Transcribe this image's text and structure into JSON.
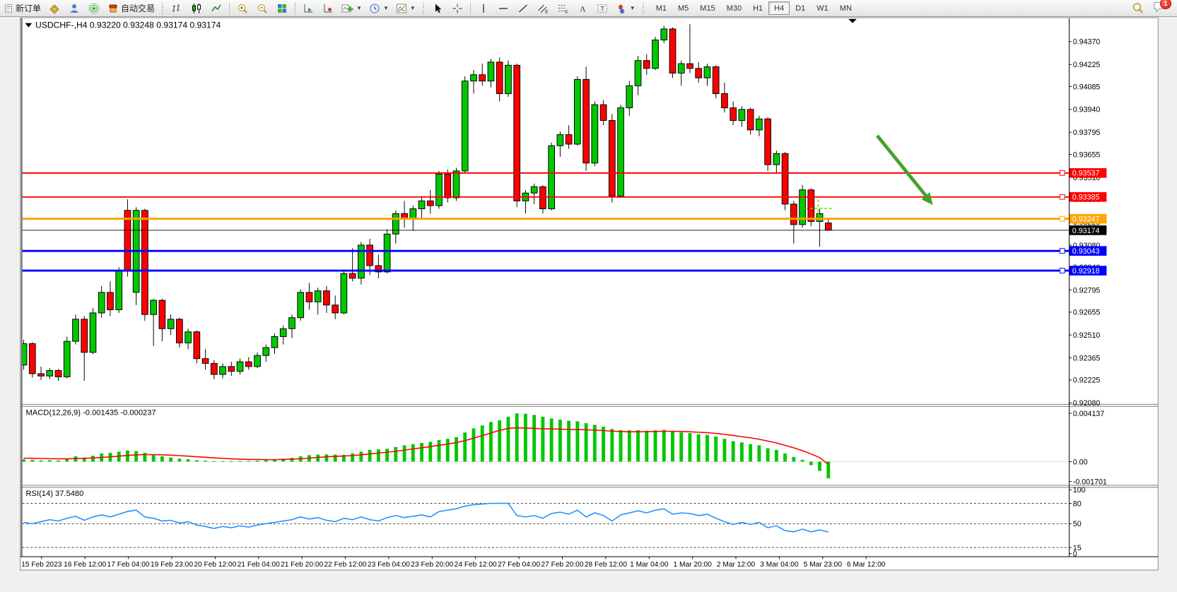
{
  "toolbar": {
    "new_order_label": "新订单",
    "autotrade_label": "自动交易",
    "timeframes": [
      "M1",
      "M5",
      "M15",
      "M30",
      "H1",
      "H4",
      "D1",
      "W1",
      "MN"
    ],
    "active_timeframe": "H4",
    "notification_count": "1",
    "icon_names": [
      "new-order",
      "quotes",
      "market-watch",
      "signal",
      "autotrading",
      "bar-chart",
      "candlestick-chart",
      "line-chart",
      "zoom-in",
      "zoom-out",
      "tile-windows",
      "auto-arrange",
      "chart-shift",
      "new-chart",
      "period-dropdown",
      "templates",
      "cursor",
      "crosshair",
      "vertical-line",
      "horizontal-line",
      "trendline",
      "equidistant-channel",
      "fibonacci",
      "text",
      "text-label",
      "arrow-shapes",
      "search",
      "notifications"
    ]
  },
  "chart_title": {
    "symbol": "USDCHF-,H4",
    "open": "0.93220",
    "high": "0.93248",
    "low": "0.93174",
    "close": "0.93174"
  },
  "time_axis": {
    "labels": [
      "15 Feb 2023",
      "16 Feb 12:00",
      "17 Feb 04:00",
      "19 Feb 23:00",
      "20 Feb 12:00",
      "21 Feb 04:00",
      "21 Feb 20:00",
      "22 Feb 12:00",
      "23 Feb 04:00",
      "23 Feb 20:00",
      "24 Feb 12:00",
      "27 Feb 04:00",
      "27 Feb 20:00",
      "28 Feb 12:00",
      "1 Mar 04:00",
      "1 Mar 20:00",
      "2 Mar 12:00",
      "3 Mar 04:00",
      "5 Mar 23:00",
      "6 Mar 12:00"
    ]
  },
  "colors": {
    "bull": "#00c800",
    "bear": "#ff0000",
    "level_red": "#ff0000",
    "level_orange": "#ffa500",
    "level_blue": "#0000ff",
    "current_line": "#000000",
    "arrow": "#44a22c",
    "rsi_line": "#1e90ff",
    "macd_signal": "#ff0000",
    "macd_hist": "#00c800",
    "marker": "#7ccf00"
  },
  "chart_data": [
    {
      "type": "candlestick",
      "title": "USDCHF H4",
      "ylim": [
        0.9208,
        0.945
      ],
      "y_ticks": [
        "0.94370",
        "0.94225",
        "0.94085",
        "0.93940",
        "0.93795",
        "0.93655",
        "0.93510",
        "0.93370",
        "0.93225",
        "0.93080",
        "0.92940",
        "0.92795",
        "0.92655",
        "0.92510",
        "0.92365",
        "0.92225",
        "0.92080"
      ],
      "levels": [
        {
          "price": 0.93537,
          "label": "0.93537",
          "color": "#ff0000",
          "width": 2,
          "handle": true
        },
        {
          "price": 0.93385,
          "label": "0.93385",
          "color": "#ff0000",
          "width": 2,
          "handle": true
        },
        {
          "price": 0.93247,
          "label": "0.93247",
          "color": "#ffa500",
          "width": 3,
          "handle": true
        },
        {
          "price": 0.93043,
          "label": "0.93043",
          "color": "#0000ff",
          "width": 3,
          "handle": true
        },
        {
          "price": 0.92918,
          "label": "0.92918",
          "color": "#0000ff",
          "width": 3,
          "handle": true
        }
      ],
      "current_price": {
        "value": 0.93174,
        "label": "0.93174"
      },
      "annotation": {
        "type": "arrow-down-right",
        "color": "#44a22c"
      },
      "marker": {
        "type": "dashed-cross",
        "color": "#7ccf00"
      },
      "ohlc": [
        [
          0.9232,
          0.9248,
          0.9229,
          0.92455
        ],
        [
          0.92455,
          0.92465,
          0.9224,
          0.92265
        ],
        [
          0.92265,
          0.9231,
          0.92225,
          0.9225
        ],
        [
          0.9225,
          0.923,
          0.9223,
          0.92285
        ],
        [
          0.92285,
          0.92295,
          0.9222,
          0.92245
        ],
        [
          0.92245,
          0.925,
          0.92235,
          0.9247
        ],
        [
          0.9247,
          0.9264,
          0.9245,
          0.9261
        ],
        [
          0.9261,
          0.9263,
          0.9222,
          0.924
        ],
        [
          0.924,
          0.9268,
          0.9239,
          0.9265
        ],
        [
          0.9265,
          0.9282,
          0.9262,
          0.9278
        ],
        [
          0.9278,
          0.9285,
          0.9263,
          0.9267
        ],
        [
          0.9267,
          0.9294,
          0.9265,
          0.9292
        ],
        [
          0.933,
          0.9337,
          0.9288,
          0.9292
        ],
        [
          0.9278,
          0.9332,
          0.927,
          0.933
        ],
        [
          0.933,
          0.9331,
          0.926,
          0.9264
        ],
        [
          0.9264,
          0.9274,
          0.9244,
          0.9273
        ],
        [
          0.9273,
          0.9274,
          0.9247,
          0.9255
        ],
        [
          0.9255,
          0.9264,
          0.9251,
          0.9261
        ],
        [
          0.9261,
          0.9262,
          0.9243,
          0.9246
        ],
        [
          0.9246,
          0.9255,
          0.9242,
          0.9253
        ],
        [
          0.9253,
          0.9254,
          0.9233,
          0.9236
        ],
        [
          0.9236,
          0.9242,
          0.9229,
          0.9233
        ],
        [
          0.9233,
          0.9235,
          0.9223,
          0.9226
        ],
        [
          0.9226,
          0.9233,
          0.92235,
          0.9231
        ],
        [
          0.9231,
          0.9234,
          0.9225,
          0.9228
        ],
        [
          0.9228,
          0.9236,
          0.9226,
          0.9234
        ],
        [
          0.9234,
          0.9237,
          0.9229,
          0.9231
        ],
        [
          0.9231,
          0.924,
          0.923,
          0.9238
        ],
        [
          0.9238,
          0.9245,
          0.9234,
          0.9243
        ],
        [
          0.9243,
          0.9252,
          0.9239,
          0.925
        ],
        [
          0.925,
          0.9257,
          0.9245,
          0.9255
        ],
        [
          0.9255,
          0.9264,
          0.9249,
          0.9262
        ],
        [
          0.9262,
          0.928,
          0.926,
          0.9278
        ],
        [
          0.9278,
          0.9284,
          0.9267,
          0.9272
        ],
        [
          0.9272,
          0.9281,
          0.9264,
          0.9279
        ],
        [
          0.9279,
          0.9282,
          0.9265,
          0.927
        ],
        [
          0.927,
          0.9276,
          0.9261,
          0.9265
        ],
        [
          0.9265,
          0.9292,
          0.9264,
          0.929
        ],
        [
          0.929,
          0.9306,
          0.9285,
          0.9287
        ],
        [
          0.9287,
          0.931,
          0.9283,
          0.9308
        ],
        [
          0.9308,
          0.9312,
          0.9289,
          0.9295
        ],
        [
          0.9295,
          0.9302,
          0.9287,
          0.9291
        ],
        [
          0.9291,
          0.9318,
          0.929,
          0.9315
        ],
        [
          0.9315,
          0.933,
          0.9309,
          0.9328
        ],
        [
          0.9328,
          0.9336,
          0.9319,
          0.9325
        ],
        [
          0.9325,
          0.9333,
          0.9317,
          0.9331
        ],
        [
          0.9331,
          0.9339,
          0.9324,
          0.9336
        ],
        [
          0.9336,
          0.9343,
          0.9328,
          0.9333
        ],
        [
          0.9333,
          0.9355,
          0.9331,
          0.9353
        ],
        [
          0.9353,
          0.9356,
          0.9335,
          0.9338
        ],
        [
          0.9338,
          0.9357,
          0.9336,
          0.9355
        ],
        [
          0.9355,
          0.9415,
          0.9354,
          0.9412
        ],
        [
          0.9412,
          0.9419,
          0.9404,
          0.9416
        ],
        [
          0.9416,
          0.9423,
          0.9409,
          0.9412
        ],
        [
          0.9412,
          0.9426,
          0.9408,
          0.9424
        ],
        [
          0.9424,
          0.9427,
          0.9399,
          0.9404
        ],
        [
          0.9404,
          0.9425,
          0.9402,
          0.9422
        ],
        [
          0.9422,
          0.9423,
          0.9332,
          0.9336
        ],
        [
          0.9336,
          0.9343,
          0.9328,
          0.9341
        ],
        [
          0.9341,
          0.9347,
          0.9334,
          0.9345
        ],
        [
          0.9345,
          0.9346,
          0.9328,
          0.9331
        ],
        [
          0.9331,
          0.9373,
          0.933,
          0.9371
        ],
        [
          0.9371,
          0.938,
          0.9364,
          0.9378
        ],
        [
          0.9378,
          0.9384,
          0.9369,
          0.9372
        ],
        [
          0.9372,
          0.9415,
          0.9371,
          0.9413
        ],
        [
          0.9413,
          0.9421,
          0.9355,
          0.936
        ],
        [
          0.936,
          0.9399,
          0.9358,
          0.9397
        ],
        [
          0.9397,
          0.94,
          0.9384,
          0.9387
        ],
        [
          0.9387,
          0.9391,
          0.9335,
          0.9339
        ],
        [
          0.9339,
          0.9397,
          0.9338,
          0.9395
        ],
        [
          0.9395,
          0.9412,
          0.939,
          0.9409
        ],
        [
          0.9409,
          0.9428,
          0.9403,
          0.9425
        ],
        [
          0.9425,
          0.9429,
          0.9416,
          0.942
        ],
        [
          0.942,
          0.944,
          0.9419,
          0.9438
        ],
        [
          0.9438,
          0.9447,
          0.9436,
          0.9445
        ],
        [
          0.9445,
          0.9446,
          0.9414,
          0.9417
        ],
        [
          0.9417,
          0.9425,
          0.9409,
          0.9423
        ],
        [
          0.9423,
          0.9448,
          0.9417,
          0.942
        ],
        [
          0.942,
          0.9424,
          0.9411,
          0.9414
        ],
        [
          0.9414,
          0.9423,
          0.9409,
          0.9421
        ],
        [
          0.9421,
          0.9422,
          0.9401,
          0.9404
        ],
        [
          0.9404,
          0.9411,
          0.9392,
          0.9395
        ],
        [
          0.9395,
          0.9399,
          0.9384,
          0.9387
        ],
        [
          0.9387,
          0.9396,
          0.9383,
          0.9394
        ],
        [
          0.9394,
          0.9395,
          0.9378,
          0.9381
        ],
        [
          0.9381,
          0.939,
          0.9377,
          0.9388
        ],
        [
          0.9388,
          0.9389,
          0.9355,
          0.9359
        ],
        [
          0.9359,
          0.9368,
          0.9354,
          0.9366
        ],
        [
          0.9366,
          0.9367,
          0.933,
          0.9334
        ],
        [
          0.9334,
          0.9336,
          0.9309,
          0.9321
        ],
        [
          0.9321,
          0.9346,
          0.9319,
          0.9343
        ],
        [
          0.9343,
          0.9344,
          0.932,
          0.9323
        ],
        [
          0.9323,
          0.9331,
          0.9307,
          0.9328
        ],
        [
          0.9322,
          0.93248,
          0.93174,
          0.93174
        ]
      ]
    },
    {
      "type": "bar",
      "name": "MACD(12,26,9)",
      "value_main": "-0.001435",
      "value_signal": "-0.000237",
      "y_ticks": [
        "0.004137",
        "0.00",
        "-0.001701"
      ],
      "hist": [
        0.0002,
        0.00015,
        0.0001,
        0.00012,
        0.0001,
        0.00025,
        0.00045,
        0.00035,
        0.0005,
        0.0007,
        0.00075,
        0.00085,
        0.00095,
        0.0009,
        0.00075,
        0.0006,
        0.00045,
        0.00035,
        0.00025,
        0.0002,
        0.00012,
        8e-05,
        5e-05,
        5e-05,
        5e-05,
        6e-05,
        6e-05,
        8e-05,
        0.00012,
        0.00018,
        0.00025,
        0.00032,
        0.00045,
        0.00055,
        0.0006,
        0.00062,
        0.0006,
        0.00058,
        0.0007,
        0.00085,
        0.001,
        0.00105,
        0.0011,
        0.00125,
        0.0014,
        0.0015,
        0.0016,
        0.0017,
        0.00185,
        0.00195,
        0.0021,
        0.0025,
        0.00285,
        0.0031,
        0.0034,
        0.00355,
        0.00385,
        0.00413,
        0.0041,
        0.004,
        0.00385,
        0.0037,
        0.0036,
        0.0035,
        0.00345,
        0.0033,
        0.00315,
        0.003,
        0.0028,
        0.0027,
        0.00268,
        0.0027,
        0.00265,
        0.00268,
        0.00272,
        0.0026,
        0.0025,
        0.00245,
        0.00235,
        0.0023,
        0.00215,
        0.00195,
        0.00175,
        0.00165,
        0.0015,
        0.0014,
        0.00115,
        0.001,
        0.0007,
        0.0004,
        0.00015,
        -0.0003,
        -0.0008,
        -0.001435
      ],
      "signal": [
        0.0003,
        0.00029,
        0.00027,
        0.00025,
        0.00024,
        0.00024,
        0.00026,
        0.00028,
        0.00031,
        0.00036,
        0.00041,
        0.00047,
        0.00053,
        0.00058,
        0.0006,
        0.0006,
        0.00058,
        0.00055,
        0.00051,
        0.00047,
        0.00042,
        0.00037,
        0.00032,
        0.00028,
        0.00024,
        0.00021,
        0.00019,
        0.00018,
        0.00017,
        0.00017,
        0.00019,
        0.00021,
        0.00025,
        0.0003,
        0.00036,
        0.00041,
        0.00045,
        0.00048,
        0.00052,
        0.00058,
        0.00066,
        0.00073,
        0.0008,
        0.00089,
        0.00099,
        0.00109,
        0.00119,
        0.00129,
        0.0014,
        0.00151,
        0.00163,
        0.0018,
        0.00201,
        0.00223,
        0.00246,
        0.00268,
        0.00285,
        0.0029,
        0.00288,
        0.00285,
        0.00282,
        0.0028,
        0.00278,
        0.00276,
        0.00275,
        0.00273,
        0.0027,
        0.00266,
        0.00262,
        0.00258,
        0.00256,
        0.00256,
        0.00257,
        0.00258,
        0.0026,
        0.0026,
        0.00258,
        0.00256,
        0.00252,
        0.00248,
        0.00242,
        0.00234,
        0.00224,
        0.00214,
        0.00204,
        0.00192,
        0.00176,
        0.0016,
        0.0014,
        0.00118,
        0.00094,
        0.00066,
        0.00034,
        -0.000237
      ]
    },
    {
      "type": "line",
      "name": "RSI(14)",
      "value": "37.5480",
      "y_ticks": [
        "100",
        "80",
        "50",
        "15",
        "0"
      ],
      "levels": [
        80,
        50,
        15
      ],
      "values": [
        52,
        50,
        53,
        56,
        54,
        58,
        61,
        55,
        60,
        63,
        60,
        64,
        68,
        70,
        60,
        58,
        54,
        55,
        51,
        53,
        48,
        46,
        43,
        46,
        44,
        47,
        45,
        48,
        50,
        52,
        54,
        56,
        60,
        57,
        59,
        55,
        53,
        58,
        56,
        60,
        56,
        54,
        59,
        62,
        59,
        61,
        63,
        60,
        68,
        70,
        72,
        76,
        78,
        79,
        80,
        80,
        80,
        62,
        60,
        62,
        58,
        65,
        67,
        64,
        70,
        60,
        66,
        62,
        54,
        63,
        66,
        69,
        66,
        70,
        72,
        64,
        66,
        65,
        62,
        64,
        58,
        53,
        49,
        52,
        49,
        52,
        44,
        47,
        40,
        38,
        42,
        38,
        41,
        37.548
      ]
    }
  ]
}
